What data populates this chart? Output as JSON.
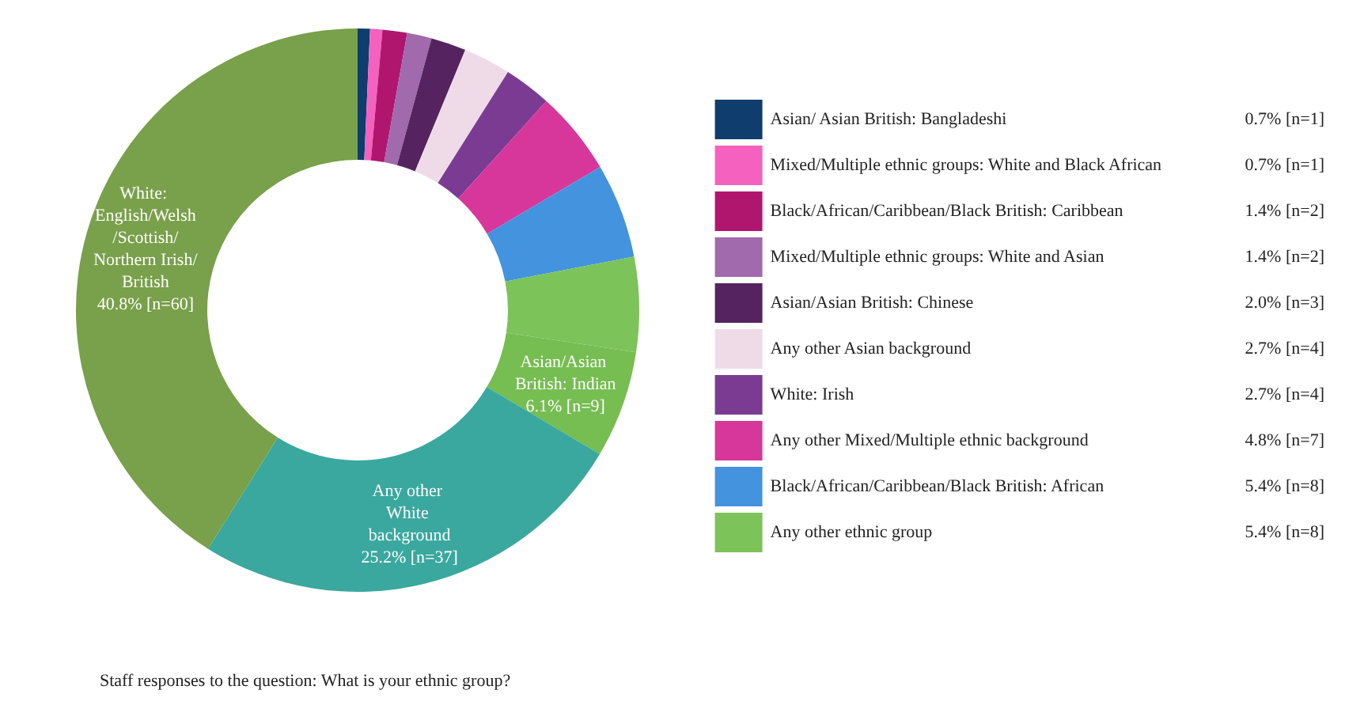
{
  "chart_data": {
    "type": "donut",
    "title": "Staff responses to the question: What is your ethnic group?",
    "categories": [
      "Asian/ Asian British: Bangladeshi",
      "Mixed/Multiple ethnic groups: White and Black African",
      "Black/African/Caribbean/Black British: Caribbean",
      "Mixed/Multiple ethnic groups: White and Asian",
      "Asian/Asian British: Chinese",
      "Any other Asian background",
      "White: Irish",
      "Any other Mixed/Multiple ethnic background",
      "Black/African/Caribbean/Black British: African",
      "Any other ethnic group",
      "Asian/Asian British: Indian",
      "Any other White background",
      "White: English/Welsh/Scottish/Northern Irish/British"
    ],
    "values": [
      0.7,
      0.7,
      1.4,
      1.4,
      2.0,
      2.7,
      2.7,
      4.8,
      5.4,
      5.4,
      6.1,
      25.2,
      40.8
    ],
    "value_labels": [
      "0.7% [n=1]",
      "0.7% [n=1]",
      "1.4% [n=2]",
      "1.4% [n=2]",
      "2.0% [n=3]",
      "2.7% [n=4]",
      "2.7% [n=4]",
      "4.8% [n=7]",
      "5.4% [n=8]",
      "5.4% [n=8]",
      "6.1% [n=9]",
      "25.2% [n=37]",
      "40.8% [n=60]"
    ],
    "colors": [
      "#0e3d6e",
      "#f561be",
      "#b1166f",
      "#a06aac",
      "#552460",
      "#efdbe8",
      "#7b3b93",
      "#d7369a",
      "#4393de",
      "#7cc35a",
      "#76bd52",
      "#3aa89e",
      "#79a04a"
    ],
    "legend": "right"
  }
}
